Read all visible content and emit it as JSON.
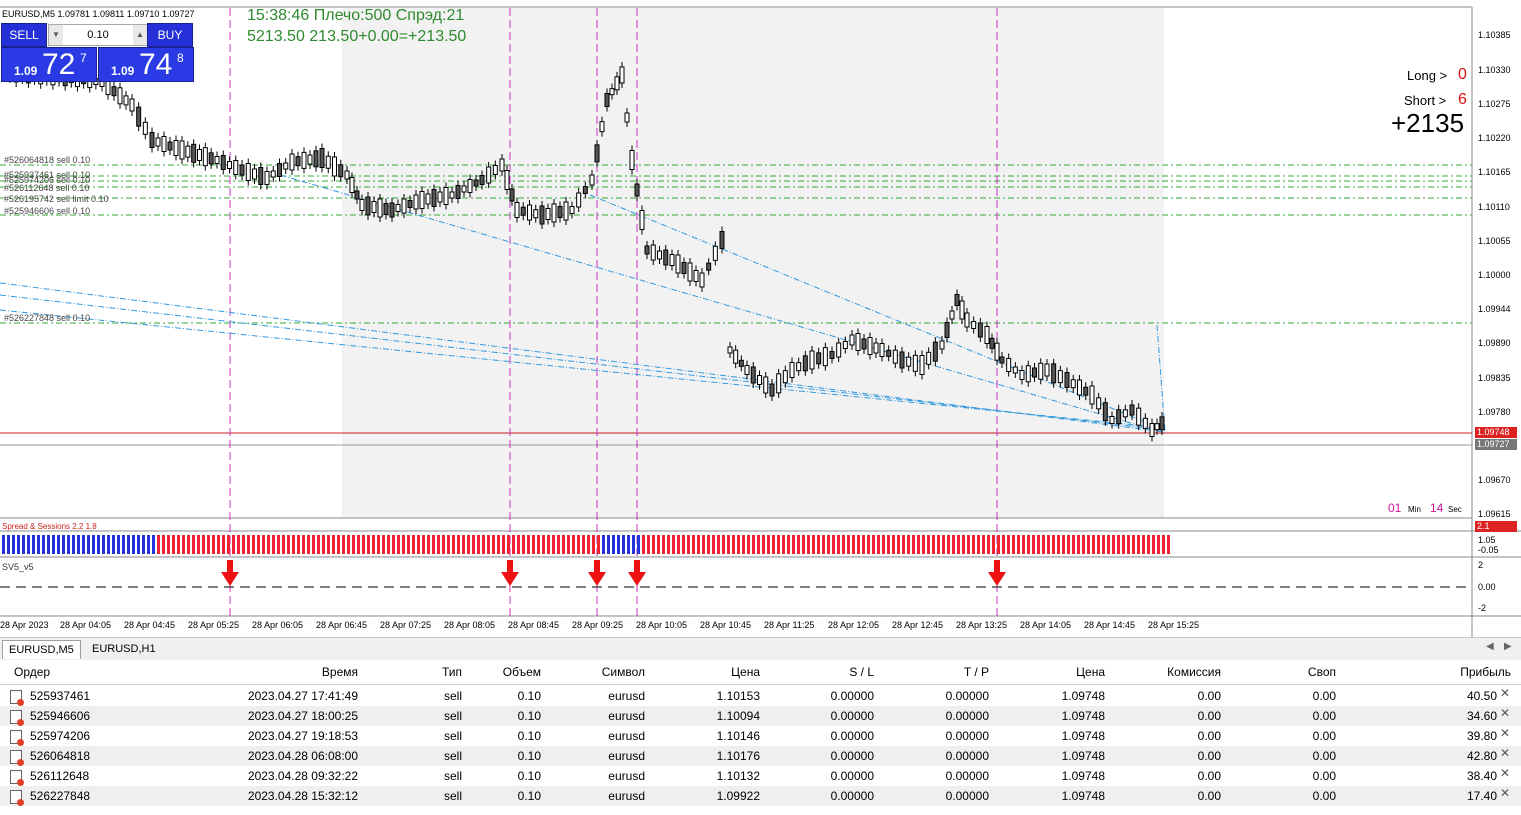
{
  "symbol_header": "EURUSD,M5  1.09781 1.09811 1.09710 1.09727",
  "ticket": {
    "sell_label": "SELL",
    "buy_label": "BUY",
    "volume": "0.10",
    "sell_small": "1.09",
    "sell_big": "72",
    "sell_sup": "7",
    "buy_small": "1.09",
    "buy_big": "74",
    "buy_sup": "8"
  },
  "info_line1": "15:38:46 Плечо:500 Спрэд:21",
  "info_line2": "5213.50   213.50+0.00=+213.50",
  "stats": {
    "long_label": "Long >",
    "long_value": "0",
    "short_label": "Short >",
    "short_value": "6",
    "profit": "+2135"
  },
  "timer": {
    "min": "01",
    "min_label": "Min",
    "sec": "14",
    "sec_label": "Sec"
  },
  "price_axis": [
    "1.10385",
    "1.10330",
    "1.10275",
    "1.10220",
    "1.10165",
    "1.10110",
    "1.10055",
    "1.10000",
    "1.09944",
    "1.09890",
    "1.09835",
    "1.09780",
    "1.09670",
    "1.09615"
  ],
  "price_tags": {
    "ask": "1.09748",
    "bid": "1.09727"
  },
  "order_labels": [
    "#526064818 sell 0.10",
    "#525937461 sell 0.10",
    "#525974206 sell 0.10",
    "#526112648 sell 0.10",
    "#526195742 sell limit 0.10",
    "#525946606 sell 0.10",
    "#526227848 sell 0.10"
  ],
  "indicator1": {
    "name": "Spread & Sessions 2.2 1.8",
    "value": "2.1"
  },
  "indicator2": {
    "axis": [
      "1.05",
      "-0.05"
    ]
  },
  "indicator3": {
    "name": "SV5_v5",
    "axis": [
      "2",
      "0.00",
      "-2"
    ]
  },
  "time_axis": [
    "28 Apr 2023",
    "28 Apr 04:05",
    "28 Apr 04:45",
    "28 Apr 05:25",
    "28 Apr 06:05",
    "28 Apr 06:45",
    "28 Apr 07:25",
    "28 Apr 08:05",
    "28 Apr 08:45",
    "28 Apr 09:25",
    "28 Apr 10:05",
    "28 Apr 10:45",
    "28 Apr 11:25",
    "28 Apr 12:05",
    "28 Apr 12:45",
    "28 Apr 13:25",
    "28 Apr 14:05",
    "28 Apr 14:45",
    "28 Apr 15:25"
  ],
  "tabs": [
    "EURUSD,M5",
    "EURUSD,H1"
  ],
  "table": {
    "headers": [
      "Ордер",
      "Время",
      "Тип",
      "Объем",
      "Символ",
      "Цена",
      "S / L",
      "T / P",
      "Цена",
      "Комиссия",
      "Своп",
      "Прибыль"
    ],
    "rows": [
      [
        "525937461",
        "2023.04.27 17:41:49",
        "sell",
        "0.10",
        "eurusd",
        "1.10153",
        "0.00000",
        "0.00000",
        "1.09748",
        "0.00",
        "0.00",
        "40.50"
      ],
      [
        "525946606",
        "2023.04.27 18:00:25",
        "sell",
        "0.10",
        "eurusd",
        "1.10094",
        "0.00000",
        "0.00000",
        "1.09748",
        "0.00",
        "0.00",
        "34.60"
      ],
      [
        "525974206",
        "2023.04.27 19:18:53",
        "sell",
        "0.10",
        "eurusd",
        "1.10146",
        "0.00000",
        "0.00000",
        "1.09748",
        "0.00",
        "0.00",
        "39.80"
      ],
      [
        "526064818",
        "2023.04.28 06:08:00",
        "sell",
        "0.10",
        "eurusd",
        "1.10176",
        "0.00000",
        "0.00000",
        "1.09748",
        "0.00",
        "0.00",
        "42.80"
      ],
      [
        "526112648",
        "2023.04.28 09:32:22",
        "sell",
        "0.10",
        "eurusd",
        "1.10132",
        "0.00000",
        "0.00000",
        "1.09748",
        "0.00",
        "0.00",
        "38.40"
      ],
      [
        "526227848",
        "2023.04.28 15:32:12",
        "sell",
        "0.10",
        "eurusd",
        "1.09922",
        "0.00000",
        "0.00000",
        "1.09748",
        "0.00",
        "0.00",
        "17.40"
      ]
    ]
  },
  "colors": {
    "grid_green": "#33aa33",
    "session_magenta": "#cc33cc",
    "bull_bar": "#2233dd",
    "bear_bar": "#ee2233",
    "ask_line": "#cc2020",
    "trend_blue": "#3399dd"
  }
}
